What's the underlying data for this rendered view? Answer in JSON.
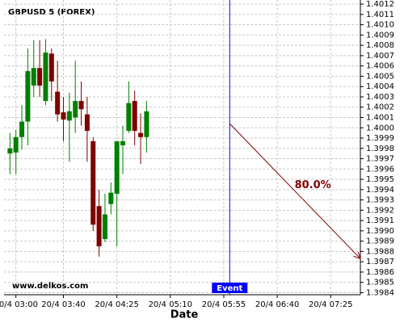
{
  "chart_data": {
    "type": "candlestick",
    "title": "GBPUSD 5 (FOREX)",
    "x_label": "Date",
    "watermark": "www.delkos.com",
    "x": [
      "20/4 02:55",
      "20/4 03:00",
      "20/4 03:05",
      "20/4 03:10",
      "20/4 03:15",
      "20/4 03:20",
      "20/4 03:25",
      "20/4 03:30",
      "20/4 03:35",
      "20/4 03:40",
      "20/4 03:45",
      "20/4 03:50",
      "20/4 03:55",
      "20/4 04:00",
      "20/4 04:05",
      "20/4 04:10",
      "20/4 04:15",
      "20/4 04:20",
      "20/4 04:25",
      "20/4 04:30",
      "20/4 04:35",
      "20/4 04:40",
      "20/4 04:45",
      "20/4 04:50"
    ],
    "open": [
      1.39975,
      1.39976,
      1.39991,
      1.40006,
      1.40041,
      1.40058,
      1.40026,
      1.40072,
      1.40035,
      1.40015,
      1.40007,
      1.4001,
      1.40026,
      1.40013,
      1.39987,
      1.39924,
      1.39892,
      1.39926,
      1.39936,
      1.39983,
      1.39997,
      1.40026,
      1.39995,
      1.39991
    ],
    "high": [
      1.39995,
      1.39998,
      1.40022,
      1.40077,
      1.40085,
      1.40085,
      1.40086,
      1.40077,
      1.40065,
      1.4003,
      1.40034,
      1.40065,
      1.40045,
      1.4003,
      1.39991,
      1.3994,
      1.39936,
      1.39947,
      1.39987,
      1.40002,
      1.40045,
      1.40036,
      1.40014,
      1.40026
    ],
    "low": [
      1.39955,
      1.39955,
      1.39979,
      1.39983,
      1.4003,
      1.4003,
      1.40022,
      1.40026,
      1.40006,
      1.39987,
      1.39967,
      1.39995,
      1.40002,
      1.39967,
      1.399,
      1.39875,
      1.39889,
      1.39916,
      1.39885,
      1.39955,
      1.39995,
      1.39983,
      1.39965,
      1.39976
    ],
    "close": [
      1.3998,
      1.39991,
      1.40006,
      1.40055,
      1.40058,
      1.40041,
      1.40073,
      1.40045,
      1.40013,
      1.40008,
      1.40016,
      1.40026,
      1.40018,
      1.39997,
      1.39906,
      1.39885,
      1.39916,
      1.39937,
      1.39987,
      1.39987,
      1.40024,
      1.39997,
      1.39991,
      1.40016
    ],
    "up_color": "#008000",
    "down_color": "#800000",
    "xlim": [
      "20/4 02:50",
      "20/4 07:50"
    ],
    "xticks": [
      "20/4 03:00",
      "20/4 03:40",
      "20/4 04:25",
      "20/4 05:10",
      "20/4 05:55",
      "20/4 06:40",
      "20/4 07:25"
    ],
    "ylim": [
      1.39838,
      1.40124
    ],
    "yticks": [
      1.3984,
      1.3985,
      1.3986,
      1.3987,
      1.3988,
      1.3989,
      {
        "value": 1.399,
        "label": "1.3990"
      },
      1.3991,
      1.3992,
      1.3993,
      1.3994,
      1.3995,
      1.3996,
      1.3997,
      1.3998,
      1.3999,
      {
        "value": 1.4,
        "label": "1.4000"
      },
      1.4001,
      1.4002,
      1.4003,
      1.4004,
      1.4005,
      1.4006,
      1.4007,
      1.4008,
      1.4009,
      {
        "value": 1.401,
        "label": "1.4010"
      },
      1.4011,
      1.4012
    ],
    "grid": true,
    "event": {
      "x": "20/4 06:00",
      "label": "Event",
      "color": "#0000ff"
    },
    "forecast": {
      "x": [
        "20/4 06:00",
        "20/4 07:50"
      ],
      "values": [
        1.40004,
        1.39873
      ],
      "label": "80.0%",
      "color": "#800000"
    }
  }
}
